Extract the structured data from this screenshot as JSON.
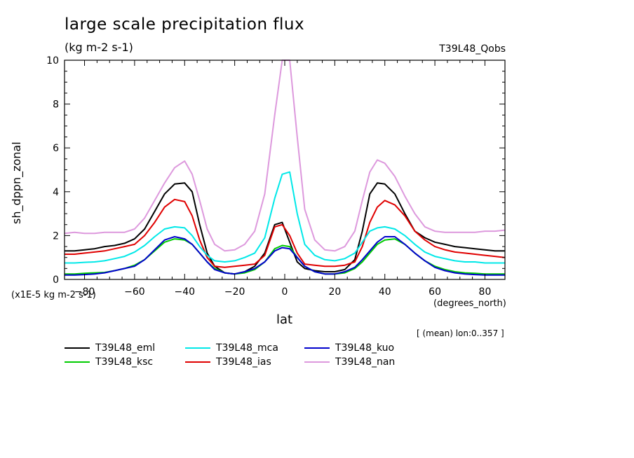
{
  "chart_data": {
    "type": "line",
    "title": "large scale precipitation flux",
    "units": "(kg m-2 s-1)",
    "run_label": "T39L48_Qobs",
    "ylabel": "sh_dppn_zonal",
    "yscale_note": "(x1E-5 kg m-2 s-1)",
    "xlabel": "lat",
    "xunits": "(degrees_north)",
    "footnote": "[ (mean) lon:0..357 ]",
    "xlim": [
      -88,
      88
    ],
    "ylim": [
      0,
      10
    ],
    "x_ticks": [
      -80,
      -60,
      -40,
      -20,
      0,
      20,
      40,
      60,
      80
    ],
    "y_ticks": [
      0,
      2,
      4,
      6,
      8,
      10
    ],
    "x": [
      -88,
      -84,
      -80,
      -76,
      -72,
      -68,
      -64,
      -60,
      -56,
      -52,
      -48,
      -44,
      -40,
      -37,
      -34,
      -31,
      -28,
      -24,
      -20,
      -16,
      -12,
      -8,
      -4,
      -1,
      2,
      5,
      8,
      12,
      16,
      20,
      24,
      28,
      31,
      34,
      37,
      40,
      44,
      48,
      52,
      56,
      60,
      64,
      68,
      72,
      76,
      80,
      84,
      88
    ],
    "series": [
      {
        "name": "T39L48_eml",
        "color": "#000000",
        "values": [
          1.3,
          1.3,
          1.35,
          1.4,
          1.5,
          1.55,
          1.65,
          1.85,
          2.3,
          3.1,
          3.9,
          4.35,
          4.4,
          4.0,
          2.5,
          1.2,
          0.6,
          0.3,
          0.25,
          0.35,
          0.6,
          1.2,
          2.5,
          2.6,
          1.7,
          0.8,
          0.5,
          0.4,
          0.35,
          0.35,
          0.45,
          0.9,
          2.2,
          3.9,
          4.4,
          4.35,
          3.9,
          3.0,
          2.2,
          1.9,
          1.7,
          1.6,
          1.5,
          1.45,
          1.4,
          1.35,
          1.3,
          1.3
        ]
      },
      {
        "name": "T39L48_ias",
        "color": "#e00000",
        "values": [
          1.15,
          1.15,
          1.2,
          1.25,
          1.3,
          1.4,
          1.5,
          1.6,
          2.0,
          2.6,
          3.3,
          3.65,
          3.55,
          2.9,
          1.8,
          1.0,
          0.6,
          0.55,
          0.6,
          0.65,
          0.7,
          1.1,
          2.4,
          2.5,
          2.0,
          1.2,
          0.7,
          0.65,
          0.6,
          0.6,
          0.65,
          0.8,
          1.5,
          2.6,
          3.3,
          3.6,
          3.4,
          2.9,
          2.2,
          1.8,
          1.5,
          1.35,
          1.25,
          1.2,
          1.15,
          1.1,
          1.05,
          1.0
        ]
      },
      {
        "name": "T39L48_ksc",
        "color": "#00cc00",
        "values": [
          0.25,
          0.25,
          0.28,
          0.3,
          0.32,
          0.4,
          0.5,
          0.65,
          0.9,
          1.3,
          1.7,
          1.85,
          1.8,
          1.6,
          1.2,
          0.8,
          0.5,
          0.3,
          0.25,
          0.3,
          0.45,
          0.8,
          1.4,
          1.55,
          1.5,
          1.0,
          0.6,
          0.35,
          0.25,
          0.25,
          0.3,
          0.5,
          0.8,
          1.2,
          1.6,
          1.8,
          1.85,
          1.6,
          1.2,
          0.85,
          0.6,
          0.45,
          0.35,
          0.3,
          0.28,
          0.25,
          0.25,
          0.25
        ]
      },
      {
        "name": "T39L48_kuo",
        "color": "#0000cc",
        "values": [
          0.2,
          0.2,
          0.22,
          0.25,
          0.3,
          0.4,
          0.5,
          0.6,
          0.9,
          1.35,
          1.8,
          1.95,
          1.85,
          1.6,
          1.2,
          0.8,
          0.45,
          0.3,
          0.25,
          0.35,
          0.5,
          0.8,
          1.3,
          1.45,
          1.4,
          1.0,
          0.6,
          0.35,
          0.25,
          0.25,
          0.35,
          0.55,
          0.9,
          1.3,
          1.7,
          1.95,
          1.95,
          1.6,
          1.2,
          0.85,
          0.55,
          0.4,
          0.3,
          0.25,
          0.22,
          0.2,
          0.2,
          0.2
        ]
      },
      {
        "name": "T39L48_mca",
        "color": "#00e8e8",
        "values": [
          0.75,
          0.75,
          0.78,
          0.8,
          0.85,
          0.95,
          1.05,
          1.25,
          1.55,
          1.95,
          2.3,
          2.4,
          2.35,
          2.0,
          1.5,
          1.1,
          0.85,
          0.8,
          0.85,
          1.0,
          1.2,
          1.9,
          3.7,
          4.8,
          4.9,
          3.0,
          1.6,
          1.1,
          0.9,
          0.85,
          0.95,
          1.2,
          1.7,
          2.2,
          2.35,
          2.4,
          2.3,
          2.0,
          1.6,
          1.25,
          1.05,
          0.95,
          0.85,
          0.8,
          0.8,
          0.75,
          0.75,
          0.75
        ]
      },
      {
        "name": "T39L48_nan",
        "color": "#dd99dd",
        "values": [
          2.1,
          2.15,
          2.1,
          2.1,
          2.15,
          2.15,
          2.15,
          2.3,
          2.8,
          3.6,
          4.4,
          5.1,
          5.4,
          4.8,
          3.6,
          2.3,
          1.6,
          1.3,
          1.35,
          1.6,
          2.2,
          3.9,
          7.5,
          10.0,
          10.0,
          6.5,
          3.2,
          1.8,
          1.35,
          1.3,
          1.5,
          2.2,
          3.6,
          4.9,
          5.45,
          5.3,
          4.7,
          3.8,
          3.0,
          2.4,
          2.2,
          2.15,
          2.15,
          2.15,
          2.15,
          2.2,
          2.2,
          2.25
        ]
      }
    ]
  }
}
